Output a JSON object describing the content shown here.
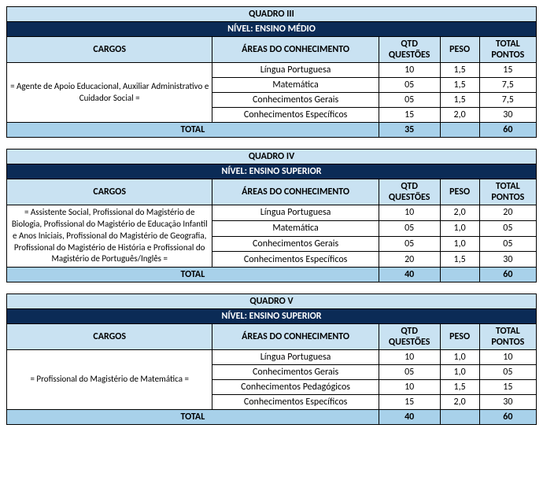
{
  "colors": {
    "lightblue": "#c9e2f2",
    "navy": "#0b2b56",
    "totalblue": "#a8d1ea",
    "white": "#ffffff"
  },
  "headers": {
    "cargos": "CARGOS",
    "areas": "ÁREAS DO CONHECIMENTO",
    "qtd": "QTD QUESTÕES",
    "peso": "PESO",
    "total": "TOTAL PONTOS",
    "total_label": "TOTAL"
  },
  "quadros": [
    {
      "title": "QUADRO III",
      "nivel": "NÍVEL: ENSINO MÉDIO",
      "cargo": "= Agente de Apoio Educacional, Auxiliar Administrativo e Cuidador Social =",
      "rows": [
        {
          "area": "Língua Portuguesa",
          "qtd": "10",
          "peso": "1,5",
          "pontos": "15"
        },
        {
          "area": "Matemática",
          "qtd": "05",
          "peso": "1,5",
          "pontos": "7,5"
        },
        {
          "area": "Conhecimentos Gerais",
          "qtd": "05",
          "peso": "1,5",
          "pontos": "7,5"
        },
        {
          "area": "Conhecimentos Específicos",
          "qtd": "15",
          "peso": "2,0",
          "pontos": "30"
        }
      ],
      "total_qtd": "35",
      "total_pontos": "60"
    },
    {
      "title": "QUADRO IV",
      "nivel": "NÍVEL: ENSINO SUPERIOR",
      "cargo": "= Assistente Social, Profissional do Magistério de Biologia, Profissional do Magistério de Educação Infantil e Anos Iniciais, Profissional do Magistério de Geografia, Profissional do Magistério de História e Profissional do Magistério de Português/Inglês =",
      "rows": [
        {
          "area": "Língua Portuguesa",
          "qtd": "10",
          "peso": "2,0",
          "pontos": "20"
        },
        {
          "area": "Matemática",
          "qtd": "05",
          "peso": "1,0",
          "pontos": "05"
        },
        {
          "area": "Conhecimentos Gerais",
          "qtd": "05",
          "peso": "1,0",
          "pontos": "05"
        },
        {
          "area": "Conhecimentos Específicos",
          "qtd": "20",
          "peso": "1,5",
          "pontos": "30"
        }
      ],
      "total_qtd": "40",
      "total_pontos": "60"
    },
    {
      "title": "QUADRO V",
      "nivel": "NÍVEL: ENSINO SUPERIOR",
      "cargo": "= Profissional do Magistério de Matemática =",
      "rows": [
        {
          "area": "Língua Portuguesa",
          "qtd": "10",
          "peso": "1,0",
          "pontos": "10"
        },
        {
          "area": "Conhecimentos Gerais",
          "qtd": "05",
          "peso": "1,0",
          "pontos": "05"
        },
        {
          "area": "Conhecimentos Pedagógicos",
          "qtd": "10",
          "peso": "1,5",
          "pontos": "15"
        },
        {
          "area": "Conhecimentos Específicos",
          "qtd": "15",
          "peso": "2,0",
          "pontos": "30"
        }
      ],
      "total_qtd": "40",
      "total_pontos": "60"
    }
  ]
}
